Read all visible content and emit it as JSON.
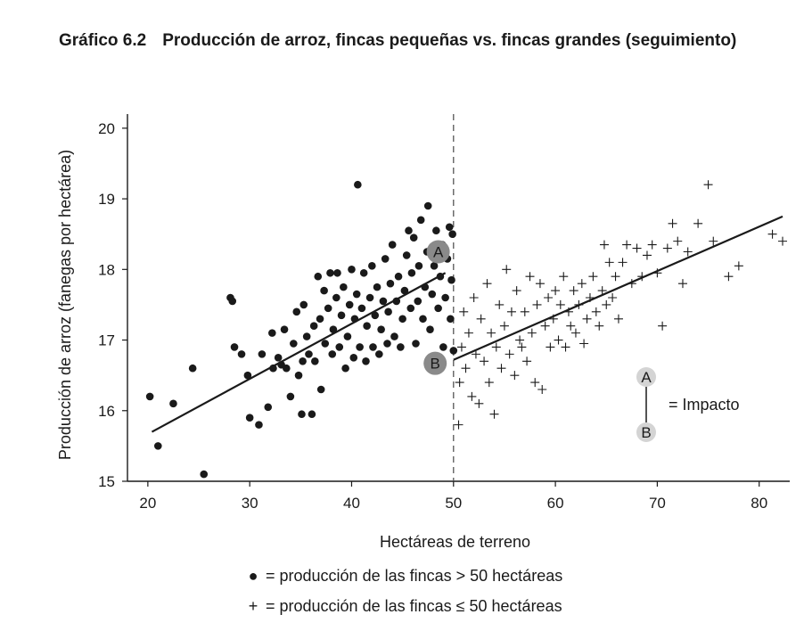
{
  "figure": {
    "number": "Gráfico 6.2",
    "title": "Producción de arroz, fincas pequeñas vs. fincas grandes (seguimiento)"
  },
  "legend": {
    "large_farms": "= producción de las fincas  > 50 hectáreas",
    "small_farms": "= producción de las fincas  ≤ 50 hectáreas"
  },
  "annotation": {
    "a_label": "A",
    "b_label": "B",
    "impact_label": "= Impacto"
  },
  "colors": {
    "ink": "#1a1a1a",
    "marker_dark": "#8a8a8a",
    "marker_light": "#d4d4d4"
  },
  "chart_data": {
    "type": "scatter",
    "xlabel": "Hectáreas de terreno",
    "ylabel": "Producción de arroz (fanegas por hectárea)",
    "xlim": [
      18,
      83
    ],
    "ylim": [
      15,
      20.2
    ],
    "xticks": [
      20,
      30,
      40,
      50,
      60,
      70,
      80
    ],
    "yticks": [
      15,
      16,
      17,
      18,
      19,
      20
    ],
    "cutoff_x": 50,
    "series": [
      {
        "marker": "dot",
        "points": [
          [
            20.2,
            16.2
          ],
          [
            21,
            15.5
          ],
          [
            22.5,
            16.1
          ],
          [
            24.4,
            16.6
          ],
          [
            25.5,
            15.1
          ],
          [
            28.1,
            17.6
          ],
          [
            28.3,
            17.55
          ],
          [
            28.5,
            16.9
          ],
          [
            29.2,
            16.8
          ],
          [
            29.8,
            16.5
          ],
          [
            30,
            15.9
          ],
          [
            30.9,
            15.8
          ],
          [
            31.2,
            16.8
          ],
          [
            31.8,
            16.05
          ],
          [
            32.2,
            17.1
          ],
          [
            32.3,
            16.6
          ],
          [
            32.8,
            16.75
          ],
          [
            33.1,
            16.65
          ],
          [
            33.4,
            17.15
          ],
          [
            33.6,
            16.6
          ],
          [
            34,
            16.2
          ],
          [
            34.3,
            16.95
          ],
          [
            34.6,
            17.4
          ],
          [
            34.8,
            16.5
          ],
          [
            35.1,
            15.95
          ],
          [
            35.2,
            16.7
          ],
          [
            35.3,
            17.5
          ],
          [
            35.6,
            17.05
          ],
          [
            35.8,
            16.8
          ],
          [
            36.1,
            15.95
          ],
          [
            36.3,
            17.2
          ],
          [
            36.4,
            16.7
          ],
          [
            36.7,
            17.9
          ],
          [
            36.9,
            17.3
          ],
          [
            37,
            16.3
          ],
          [
            37.3,
            17.7
          ],
          [
            37.4,
            16.95
          ],
          [
            37.7,
            17.45
          ],
          [
            37.9,
            17.95
          ],
          [
            38.1,
            16.8
          ],
          [
            38.2,
            17.15
          ],
          [
            38.5,
            17.6
          ],
          [
            38.6,
            17.95
          ],
          [
            38.8,
            16.9
          ],
          [
            39,
            17.35
          ],
          [
            39.2,
            17.75
          ],
          [
            39.4,
            16.6
          ],
          [
            39.6,
            17.05
          ],
          [
            39.8,
            17.5
          ],
          [
            40,
            18
          ],
          [
            40.2,
            16.75
          ],
          [
            40.3,
            17.3
          ],
          [
            40.5,
            17.65
          ],
          [
            40.6,
            19.2
          ],
          [
            40.8,
            16.9
          ],
          [
            41,
            17.45
          ],
          [
            41.2,
            17.95
          ],
          [
            41.4,
            16.7
          ],
          [
            41.5,
            17.2
          ],
          [
            41.8,
            17.6
          ],
          [
            42,
            18.05
          ],
          [
            42.1,
            16.9
          ],
          [
            42.3,
            17.35
          ],
          [
            42.5,
            17.75
          ],
          [
            42.7,
            16.8
          ],
          [
            42.9,
            17.15
          ],
          [
            43.1,
            17.55
          ],
          [
            43.3,
            18.15
          ],
          [
            43.5,
            16.95
          ],
          [
            43.6,
            17.4
          ],
          [
            43.8,
            17.8
          ],
          [
            44,
            18.35
          ],
          [
            44.2,
            17.05
          ],
          [
            44.4,
            17.55
          ],
          [
            44.6,
            17.9
          ],
          [
            44.8,
            16.9
          ],
          [
            45,
            17.3
          ],
          [
            45.2,
            17.7
          ],
          [
            45.4,
            18.2
          ],
          [
            45.6,
            18.55
          ],
          [
            45.8,
            17.45
          ],
          [
            45.9,
            17.95
          ],
          [
            46.1,
            18.45
          ],
          [
            46.3,
            16.95
          ],
          [
            46.5,
            17.55
          ],
          [
            46.6,
            18.05
          ],
          [
            46.8,
            18.7
          ],
          [
            47,
            17.3
          ],
          [
            47.2,
            17.75
          ],
          [
            47.4,
            18.25
          ],
          [
            47.5,
            18.9
          ],
          [
            47.7,
            17.15
          ],
          [
            47.9,
            17.65
          ],
          [
            48.1,
            18.05
          ],
          [
            48.3,
            18.55
          ],
          [
            48.5,
            17.45
          ],
          [
            48.7,
            17.9
          ],
          [
            48.9,
            18.35
          ],
          [
            49,
            16.9
          ],
          [
            49.2,
            17.6
          ],
          [
            49.4,
            18.15
          ],
          [
            49.6,
            18.6
          ],
          [
            49.7,
            17.3
          ],
          [
            49.8,
            17.85
          ],
          [
            49.9,
            18.5
          ],
          [
            50,
            16.85
          ]
        ]
      },
      {
        "marker": "plus",
        "points": [
          [
            50.5,
            15.8
          ],
          [
            50.6,
            16.4
          ],
          [
            50.8,
            16.9
          ],
          [
            51,
            17.4
          ],
          [
            51.2,
            16.6
          ],
          [
            51.5,
            17.1
          ],
          [
            51.8,
            16.2
          ],
          [
            52,
            17.6
          ],
          [
            52.2,
            16.8
          ],
          [
            52.5,
            16.1
          ],
          [
            52.7,
            17.3
          ],
          [
            53,
            16.7
          ],
          [
            53.3,
            17.8
          ],
          [
            53.5,
            16.4
          ],
          [
            53.7,
            17.1
          ],
          [
            54,
            15.95
          ],
          [
            54.2,
            16.9
          ],
          [
            54.5,
            17.5
          ],
          [
            54.7,
            16.6
          ],
          [
            55,
            17.2
          ],
          [
            55.2,
            18
          ],
          [
            55.5,
            16.8
          ],
          [
            55.7,
            17.4
          ],
          [
            56,
            16.5
          ],
          [
            56.2,
            17.7
          ],
          [
            56.5,
            17
          ],
          [
            56.7,
            16.9
          ],
          [
            57,
            17.4
          ],
          [
            57.2,
            16.7
          ],
          [
            57.5,
            17.9
          ],
          [
            57.7,
            17.1
          ],
          [
            58,
            16.4
          ],
          [
            58.2,
            17.5
          ],
          [
            58.5,
            17.8
          ],
          [
            58.7,
            16.3
          ],
          [
            59,
            17.2
          ],
          [
            59.3,
            17.6
          ],
          [
            59.5,
            16.9
          ],
          [
            59.8,
            17.3
          ],
          [
            60,
            17.7
          ],
          [
            60.3,
            17
          ],
          [
            60.5,
            17.5
          ],
          [
            60.8,
            17.9
          ],
          [
            61,
            16.9
          ],
          [
            61.3,
            17.4
          ],
          [
            61.5,
            17.2
          ],
          [
            61.8,
            17.7
          ],
          [
            62,
            17.1
          ],
          [
            62.3,
            17.5
          ],
          [
            62.6,
            17.8
          ],
          [
            62.8,
            16.95
          ],
          [
            63.1,
            17.3
          ],
          [
            63.4,
            17.6
          ],
          [
            63.7,
            17.9
          ],
          [
            64,
            17.4
          ],
          [
            64.3,
            17.2
          ],
          [
            64.6,
            17.7
          ],
          [
            64.8,
            18.35
          ],
          [
            65,
            17.5
          ],
          [
            65.3,
            18.1
          ],
          [
            65.6,
            17.6
          ],
          [
            65.9,
            17.9
          ],
          [
            66.2,
            17.3
          ],
          [
            66.6,
            18.1
          ],
          [
            67,
            18.35
          ],
          [
            67.5,
            17.8
          ],
          [
            68,
            18.3
          ],
          [
            68.5,
            17.9
          ],
          [
            69,
            18.2
          ],
          [
            69.5,
            18.35
          ],
          [
            70,
            17.95
          ],
          [
            70.5,
            17.2
          ],
          [
            71,
            18.3
          ],
          [
            71.5,
            18.65
          ],
          [
            72,
            18.4
          ],
          [
            72.5,
            17.8
          ],
          [
            73,
            18.25
          ],
          [
            74,
            18.65
          ],
          [
            75,
            19.2
          ],
          [
            75.5,
            18.4
          ],
          [
            77,
            17.9
          ],
          [
            78,
            18.05
          ],
          [
            81.3,
            18.5
          ],
          [
            82.3,
            18.4
          ]
        ]
      }
    ],
    "fit_lines": [
      {
        "x": [
          20.4,
          49.2
        ],
        "y": [
          15.7,
          17.95
        ]
      },
      {
        "x": [
          50,
          82.3
        ],
        "y": [
          16.72,
          18.75
        ]
      }
    ],
    "markers": [
      {
        "label": "A",
        "x": 48.5,
        "y": 18.25
      },
      {
        "label": "B",
        "x": 48.2,
        "y": 16.67
      }
    ]
  }
}
